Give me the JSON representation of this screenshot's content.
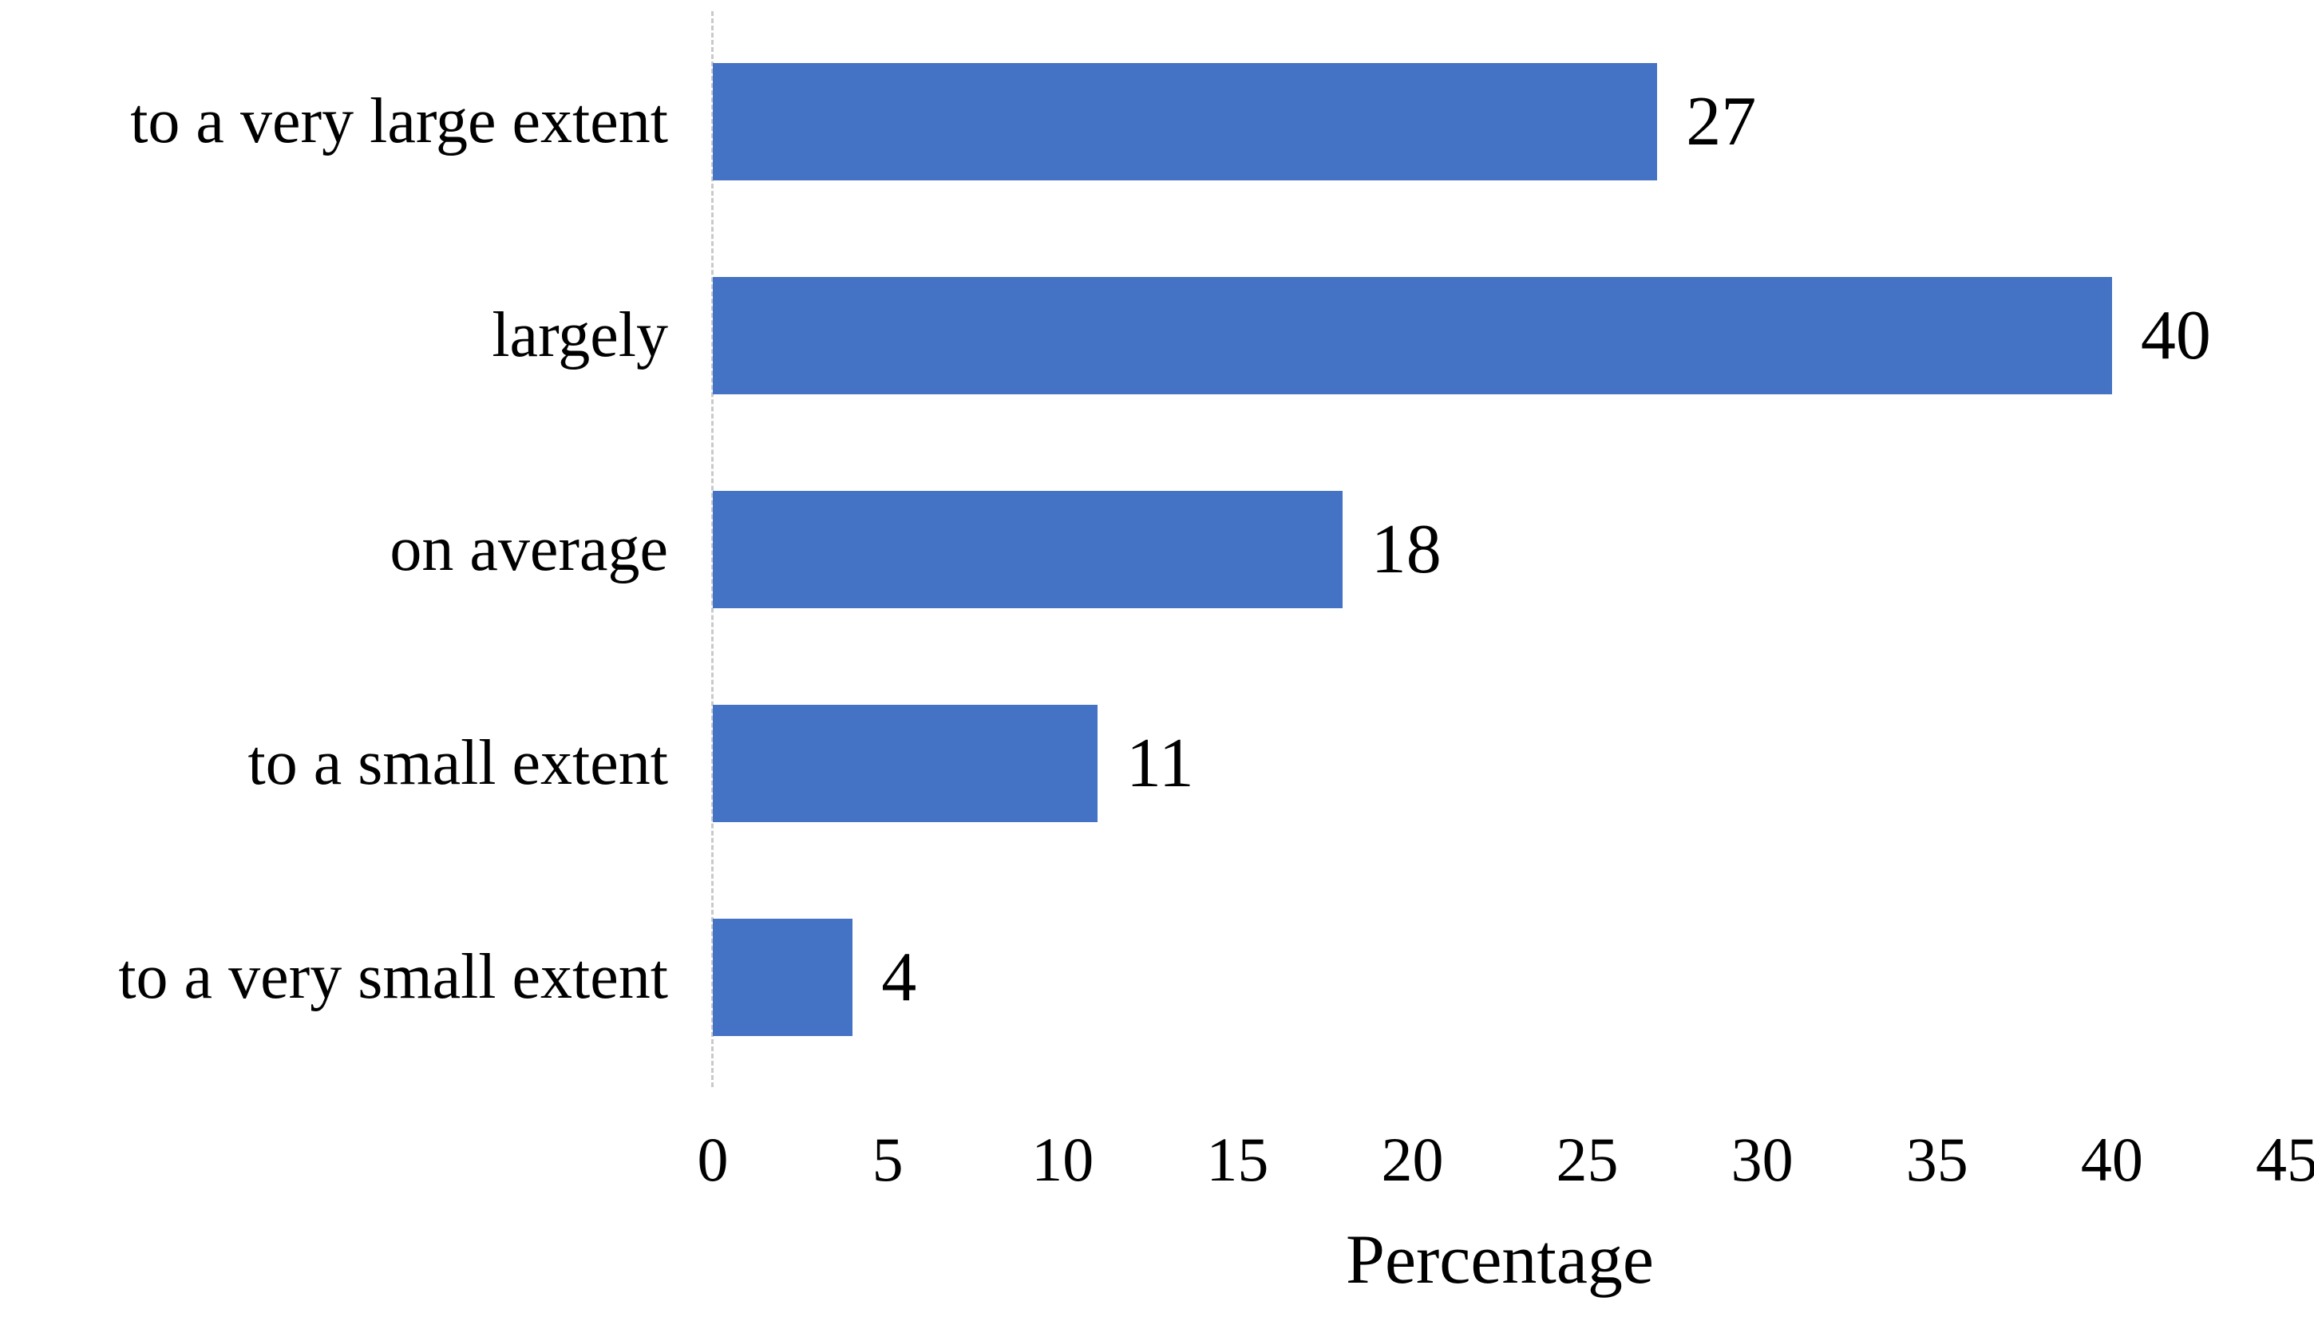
{
  "figure": {
    "background_color": "#ffffff",
    "text_color": "#000000"
  },
  "chart_data": {
    "type": "bar",
    "orientation": "horizontal",
    "title": "",
    "categories": [
      "to a very large extent",
      "largely",
      "on average",
      "to a small extent",
      "to a very small extent"
    ],
    "values": [
      27,
      40,
      18,
      11,
      4
    ],
    "data_labels": [
      "27",
      "40",
      "18",
      "11",
      "4"
    ],
    "xlabel": "Percentage",
    "ylabel": "",
    "xlim": [
      0,
      45
    ],
    "x_ticks": [
      0,
      5,
      10,
      15,
      20,
      25,
      30,
      35,
      40,
      45
    ],
    "bar_color": "#4472C4",
    "axis_line_color": "#c9c9c9",
    "grid": false,
    "legend": false,
    "data_labels_shown": true
  }
}
